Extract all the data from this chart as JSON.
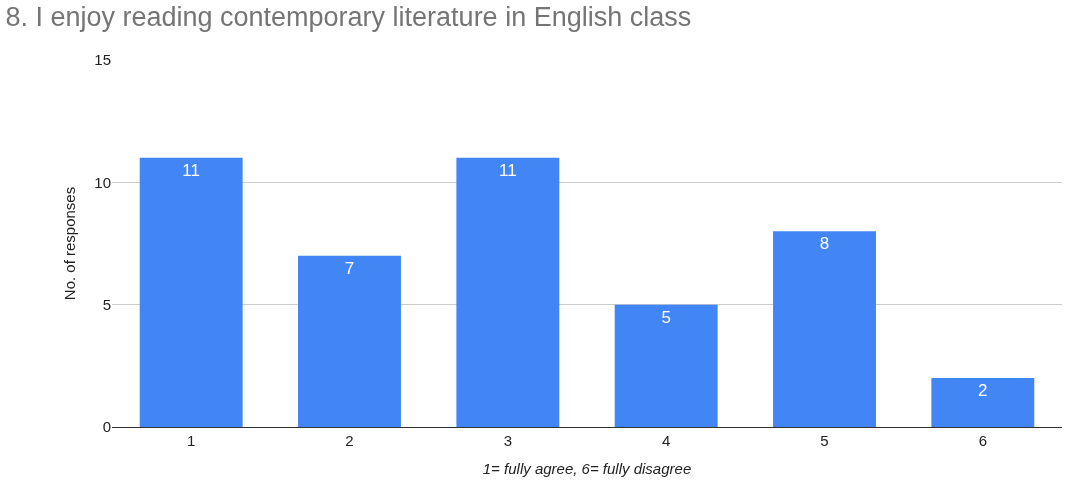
{
  "chart_data": {
    "type": "bar",
    "title": "8. I enjoy reading contemporary literature in English class",
    "xlabel": "1= fully agree, 6= fully disagree",
    "ylabel": "No. of responses",
    "categories": [
      "1",
      "2",
      "3",
      "4",
      "5",
      "6"
    ],
    "values": [
      11,
      7,
      11,
      5,
      8,
      2
    ],
    "color": "#4285f4",
    "ylim": [
      0,
      15
    ],
    "yticks": [
      0,
      5,
      10,
      15
    ],
    "grid": "y",
    "data_labels": true
  }
}
